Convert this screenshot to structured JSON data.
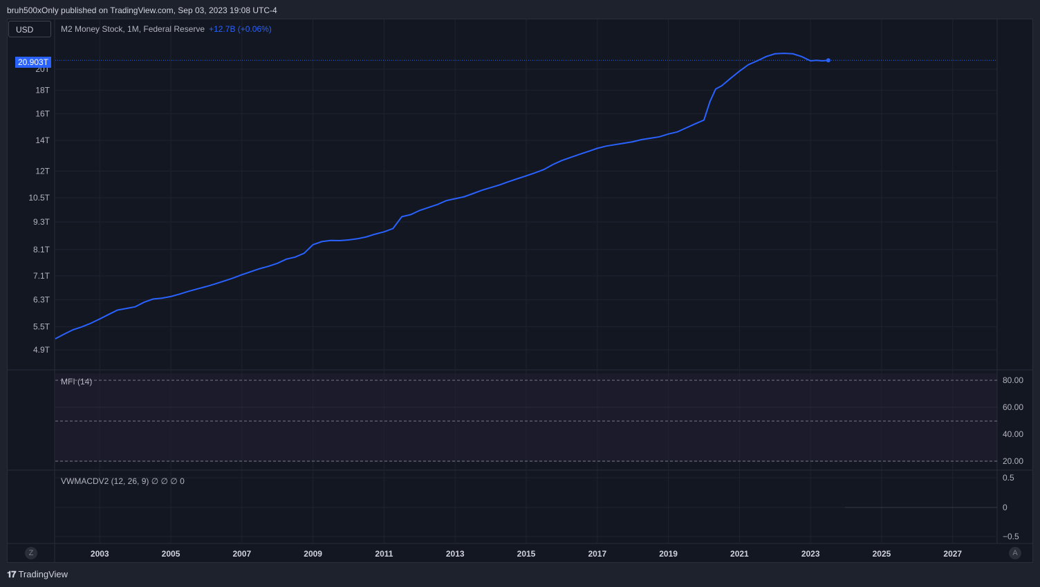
{
  "header": {
    "text": "bruh500xOnly published on TradingView.com, Sep 03, 2023 19:08 UTC-4"
  },
  "currency_button": "USD",
  "legend": {
    "title": "M2 Money Stock, 1M, Federal Reserve",
    "change": "+12.7B (+0.06%)"
  },
  "price_tag": "20.903T",
  "mfi": {
    "label": "MFI (14)",
    "ticks": [
      "80.00",
      "60.00",
      "40.00",
      "20.00"
    ]
  },
  "macd": {
    "label": "VWMACDV2 (12, 26, 9)  ∅  ∅  ∅  0",
    "ticks": [
      "0.5",
      "0",
      "−0.5"
    ]
  },
  "corners": {
    "left": "Z",
    "right": "A"
  },
  "footer": {
    "brand": "TradingView"
  },
  "colors": {
    "line": "#2962ff",
    "background": "#131722"
  },
  "chart_data": {
    "type": "line",
    "scale": "log",
    "title": "M2 Money Stock, 1M, Federal Reserve",
    "y_ticks": [
      "20T",
      "18T",
      "16T",
      "14T",
      "12T",
      "10.5T",
      "9.3T",
      "8.1T",
      "7.1T",
      "6.3T",
      "5.5T",
      "4.9T"
    ],
    "y_tick_values": [
      20,
      18,
      16,
      14,
      12,
      10.5,
      9.3,
      8.1,
      7.1,
      6.3,
      5.5,
      4.9
    ],
    "x_ticks": [
      "2003",
      "2005",
      "2007",
      "2009",
      "2011",
      "2013",
      "2015",
      "2017",
      "2019",
      "2021",
      "2023",
      "2025",
      "2027"
    ],
    "x_range": [
      2001.75,
      2028.25
    ],
    "last_value": 20.903,
    "series": [
      {
        "x": [
          2001.75,
          2002.0,
          2002.25,
          2002.5,
          2002.75,
          2003.0,
          2003.25,
          2003.5,
          2003.75,
          2004.0,
          2004.25,
          2004.5,
          2004.75,
          2005.0,
          2005.25,
          2005.5,
          2005.75,
          2006.0,
          2006.25,
          2006.5,
          2006.75,
          2007.0,
          2007.25,
          2007.5,
          2007.75,
          2008.0,
          2008.25,
          2008.5,
          2008.75,
          2009.0,
          2009.25,
          2009.5,
          2009.75,
          2010.0,
          2010.25,
          2010.5,
          2010.75,
          2011.0,
          2011.25,
          2011.5,
          2011.75,
          2012.0,
          2012.25,
          2012.5,
          2012.75,
          2013.0,
          2013.25,
          2013.5,
          2013.75,
          2014.0,
          2014.25,
          2014.5,
          2014.75,
          2015.0,
          2015.25,
          2015.5,
          2015.75,
          2016.0,
          2016.25,
          2016.5,
          2016.75,
          2017.0,
          2017.25,
          2017.5,
          2017.75,
          2018.0,
          2018.25,
          2018.5,
          2018.75,
          2019.0,
          2019.25,
          2019.5,
          2019.75,
          2020.0,
          2020.17,
          2020.33,
          2020.5,
          2020.75,
          2021.0,
          2021.25,
          2021.5,
          2021.75,
          2022.0,
          2022.25,
          2022.5,
          2022.75,
          2023.0,
          2023.17,
          2023.33,
          2023.5
        ],
        "values": [
          5.18,
          5.3,
          5.42,
          5.5,
          5.6,
          5.72,
          5.85,
          5.98,
          6.03,
          6.08,
          6.22,
          6.32,
          6.35,
          6.4,
          6.48,
          6.57,
          6.65,
          6.73,
          6.82,
          6.92,
          7.02,
          7.14,
          7.25,
          7.36,
          7.45,
          7.56,
          7.72,
          7.8,
          7.95,
          8.3,
          8.43,
          8.48,
          8.47,
          8.5,
          8.55,
          8.63,
          8.75,
          8.85,
          9.0,
          9.55,
          9.65,
          9.85,
          10.0,
          10.15,
          10.35,
          10.45,
          10.55,
          10.72,
          10.9,
          11.05,
          11.2,
          11.38,
          11.55,
          11.72,
          11.9,
          12.1,
          12.4,
          12.65,
          12.85,
          13.05,
          13.25,
          13.45,
          13.6,
          13.7,
          13.8,
          13.9,
          14.05,
          14.15,
          14.25,
          14.45,
          14.6,
          14.9,
          15.2,
          15.5,
          17.0,
          18.1,
          18.4,
          19.1,
          19.8,
          20.45,
          20.85,
          21.3,
          21.6,
          21.65,
          21.6,
          21.3,
          20.85,
          20.9,
          20.85,
          20.903
        ]
      }
    ]
  }
}
